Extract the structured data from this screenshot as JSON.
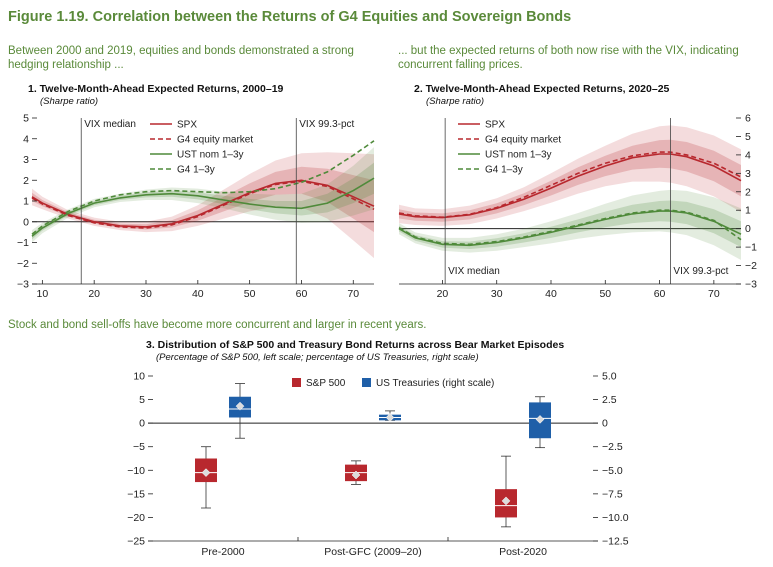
{
  "figure": {
    "title": "Figure 1.19. Correlation between the Returns of G4 Equities and Sovereign Bonds",
    "lead_left": "Between 2000 and 2019, equities and bonds demonstrated a strong hedging relationship ...",
    "lead_right": "... but the expected returns of both now rise with the VIX, indicating concurrent falling prices.",
    "lead_bottom": "Stock and bond sell-offs have become more concurrent and larger in recent years."
  },
  "colors": {
    "title_green": "#5a8a3a",
    "spx_red": "#b8282e",
    "ust_green": "#4f8a3a",
    "ust_blue": "#1f5fa8"
  },
  "chart_data": [
    {
      "type": "line",
      "title": "1. Twelve-Month-Ahead Expected Returns, 2000–19",
      "subtitle": "(Sharpe ratio)",
      "xlim": [
        8,
        74
      ],
      "ylim": [
        -3,
        5
      ],
      "xticks": [
        10,
        20,
        30,
        40,
        50,
        60,
        70
      ],
      "yticks": [
        -3,
        -2,
        -1,
        0,
        1,
        2,
        3,
        4,
        5
      ],
      "yaxis_side": "left",
      "annotations": [
        {
          "label": "VIX median",
          "x": 17.5
        },
        {
          "label": "VIX 99.3-pct",
          "x": 59
        }
      ],
      "legend": [
        "SPX",
        "G4 equity market",
        "UST nom 1–3y",
        "G4 1–3y"
      ],
      "series": [
        {
          "name": "SPX",
          "style": "solid",
          "color": "#b8282e",
          "x": [
            8,
            10,
            15,
            20,
            25,
            30,
            35,
            40,
            45,
            50,
            55,
            60,
            65,
            70,
            74
          ],
          "y": [
            1.2,
            0.9,
            0.35,
            0.0,
            -0.2,
            -0.25,
            -0.1,
            0.3,
            0.85,
            1.4,
            1.85,
            2.0,
            1.75,
            1.2,
            0.75
          ],
          "band": [
            0.4,
            0.3,
            0.2,
            0.2,
            0.2,
            0.25,
            0.35,
            0.5,
            0.7,
            0.9,
            1.1,
            1.3,
            1.6,
            2.1,
            2.5
          ]
        },
        {
          "name": "G4 equity market",
          "style": "dashed",
          "color": "#b8282e",
          "x": [
            8,
            10,
            15,
            20,
            25,
            30,
            35,
            40,
            45,
            50,
            55,
            60,
            65,
            70,
            74
          ],
          "y": [
            1.15,
            0.85,
            0.3,
            -0.05,
            -0.25,
            -0.3,
            -0.15,
            0.25,
            0.8,
            1.35,
            1.8,
            1.95,
            1.7,
            1.1,
            0.6
          ],
          "band": [
            0.4,
            0.3,
            0.2,
            0.2,
            0.2,
            0.25,
            0.35,
            0.5,
            0.7,
            0.9,
            1.1,
            1.3,
            1.6,
            2.1,
            2.5
          ]
        },
        {
          "name": "UST nom 1–3y",
          "style": "solid",
          "color": "#4f8a3a",
          "x": [
            8,
            10,
            15,
            20,
            25,
            30,
            35,
            40,
            45,
            50,
            55,
            60,
            65,
            70,
            74
          ],
          "y": [
            -0.7,
            -0.3,
            0.4,
            0.9,
            1.15,
            1.3,
            1.35,
            1.25,
            1.05,
            0.85,
            0.7,
            0.65,
            0.9,
            1.5,
            2.1
          ],
          "band": [
            0.3,
            0.25,
            0.2,
            0.2,
            0.2,
            0.25,
            0.3,
            0.35,
            0.4,
            0.5,
            0.6,
            0.7,
            0.9,
            1.2,
            1.5
          ]
        },
        {
          "name": "G4 1–3y",
          "style": "dashed",
          "color": "#4f8a3a",
          "x": [
            8,
            10,
            15,
            20,
            25,
            30,
            35,
            40,
            45,
            50,
            55,
            60,
            65,
            70,
            74
          ],
          "y": [
            -0.6,
            -0.2,
            0.5,
            1.0,
            1.3,
            1.45,
            1.5,
            1.45,
            1.4,
            1.45,
            1.6,
            1.9,
            2.4,
            3.2,
            3.9
          ],
          "band": [
            0.3,
            0.25,
            0.2,
            0.2,
            0.2,
            0.25,
            0.3,
            0.35,
            0.4,
            0.5,
            0.6,
            0.7,
            0.9,
            1.2,
            1.5
          ]
        }
      ]
    },
    {
      "type": "line",
      "title": "2. Twelve-Month-Ahead Expected Returns, 2020–25",
      "subtitle": "(Sharpe ratio)",
      "xlim": [
        12,
        75
      ],
      "ylim": [
        -3,
        6
      ],
      "xticks": [
        20,
        30,
        40,
        50,
        60,
        70
      ],
      "yticks": [
        -3,
        -2,
        -1,
        0,
        1,
        2,
        3,
        4,
        5,
        6
      ],
      "yaxis_side": "right",
      "annotations": [
        {
          "label": "VIX median",
          "x": 20.5
        },
        {
          "label": "VIX 99.3-pct",
          "x": 62
        }
      ],
      "legend": [
        "SPX",
        "G4 equity market",
        "UST nom 1–3y",
        "G4 1–3y"
      ],
      "series": [
        {
          "name": "SPX",
          "style": "solid",
          "color": "#b8282e",
          "x": [
            12,
            15,
            20,
            25,
            30,
            35,
            40,
            45,
            50,
            55,
            60,
            62,
            65,
            70,
            75
          ],
          "y": [
            0.8,
            0.65,
            0.6,
            0.75,
            1.1,
            1.6,
            2.2,
            2.85,
            3.4,
            3.85,
            4.05,
            4.05,
            3.9,
            3.4,
            2.6
          ],
          "band": [
            0.5,
            0.45,
            0.45,
            0.5,
            0.55,
            0.65,
            0.8,
            0.95,
            1.1,
            1.3,
            1.5,
            1.55,
            1.6,
            1.65,
            1.7
          ]
        },
        {
          "name": "G4 equity market",
          "style": "dashed",
          "color": "#b8282e",
          "x": [
            12,
            15,
            20,
            25,
            30,
            35,
            40,
            45,
            50,
            55,
            60,
            62,
            65,
            70,
            75
          ],
          "y": [
            0.85,
            0.7,
            0.62,
            0.78,
            1.15,
            1.7,
            2.35,
            3.0,
            3.55,
            3.95,
            4.15,
            4.15,
            4.0,
            3.55,
            2.8
          ],
          "band": [
            0.5,
            0.45,
            0.45,
            0.5,
            0.55,
            0.65,
            0.8,
            0.95,
            1.1,
            1.3,
            1.5,
            1.55,
            1.6,
            1.65,
            1.7
          ]
        },
        {
          "name": "UST nom 1–3y",
          "style": "solid",
          "color": "#4f8a3a",
          "x": [
            12,
            15,
            20,
            25,
            30,
            35,
            40,
            45,
            50,
            55,
            60,
            62,
            65,
            70,
            75
          ],
          "y": [
            0.0,
            -0.5,
            -0.85,
            -0.9,
            -0.75,
            -0.5,
            -0.2,
            0.15,
            0.5,
            0.8,
            0.95,
            0.95,
            0.85,
            0.4,
            -0.3
          ],
          "band": [
            0.3,
            0.3,
            0.35,
            0.4,
            0.45,
            0.5,
            0.6,
            0.7,
            0.85,
            1.0,
            1.1,
            1.15,
            1.2,
            1.3,
            1.4
          ]
        },
        {
          "name": "G4 1–3y",
          "style": "dashed",
          "color": "#4f8a3a",
          "x": [
            12,
            15,
            20,
            25,
            30,
            35,
            40,
            45,
            50,
            55,
            60,
            62,
            65,
            70,
            75
          ],
          "y": [
            0.05,
            -0.45,
            -0.8,
            -0.85,
            -0.7,
            -0.45,
            -0.15,
            0.2,
            0.55,
            0.85,
            1.0,
            1.0,
            0.9,
            0.45,
            -0.6
          ],
          "band": [
            0.3,
            0.3,
            0.35,
            0.4,
            0.45,
            0.5,
            0.6,
            0.7,
            0.85,
            1.0,
            1.1,
            1.15,
            1.2,
            1.3,
            1.4
          ]
        }
      ]
    },
    {
      "type": "box",
      "title": "3. Distribution of S&P 500 and Treasury Bond Returns across Bear Market Episodes",
      "subtitle": "(Percentage of S&P 500, left scale; percentage of US Treasuries, right scale)",
      "categories": [
        "Pre-2000",
        "Post-GFC (2009–20)",
        "Post-2020"
      ],
      "ylim_left": [
        -25,
        10
      ],
      "ylim_right": [
        -12.5,
        5
      ],
      "yticks_left": [
        -25,
        -20,
        -15,
        -10,
        -5,
        0,
        5,
        10
      ],
      "yticks_right": [
        "-12.5",
        "-10.0",
        "-7.5",
        "-5.0",
        "-2.5",
        "0",
        "2.5",
        "5.0"
      ],
      "legend": [
        "S&P 500",
        "US Treasuries (right scale)"
      ],
      "series": [
        {
          "name": "S&P 500",
          "axis": "left",
          "color": "#b8282e",
          "boxes": [
            {
              "min": -18.0,
              "q1": -12.5,
              "median": -10.5,
              "q3": -7.5,
              "max": -5.0,
              "mean": -10.5
            },
            {
              "min": -13.0,
              "q1": -12.3,
              "median": -10.5,
              "q3": -8.8,
              "max": -8.0,
              "mean": -11.0
            },
            {
              "min": -22.0,
              "q1": -20.0,
              "median": -17.5,
              "q3": -14.0,
              "max": -7.0,
              "mean": -16.5
            }
          ]
        },
        {
          "name": "US Treasuries (right scale)",
          "axis": "right",
          "color": "#1f5fa8",
          "boxes": [
            {
              "min": -1.6,
              "q1": 0.6,
              "median": 1.5,
              "q3": 2.8,
              "max": 4.2,
              "mean": 1.8
            },
            {
              "min": 0.3,
              "q1": 0.3,
              "median": 0.6,
              "q3": 0.9,
              "max": 1.3,
              "mean": 0.6
            },
            {
              "min": -2.6,
              "q1": -1.6,
              "median": 0.5,
              "q3": 2.2,
              "max": 2.8,
              "mean": 0.4
            }
          ]
        }
      ]
    }
  ]
}
